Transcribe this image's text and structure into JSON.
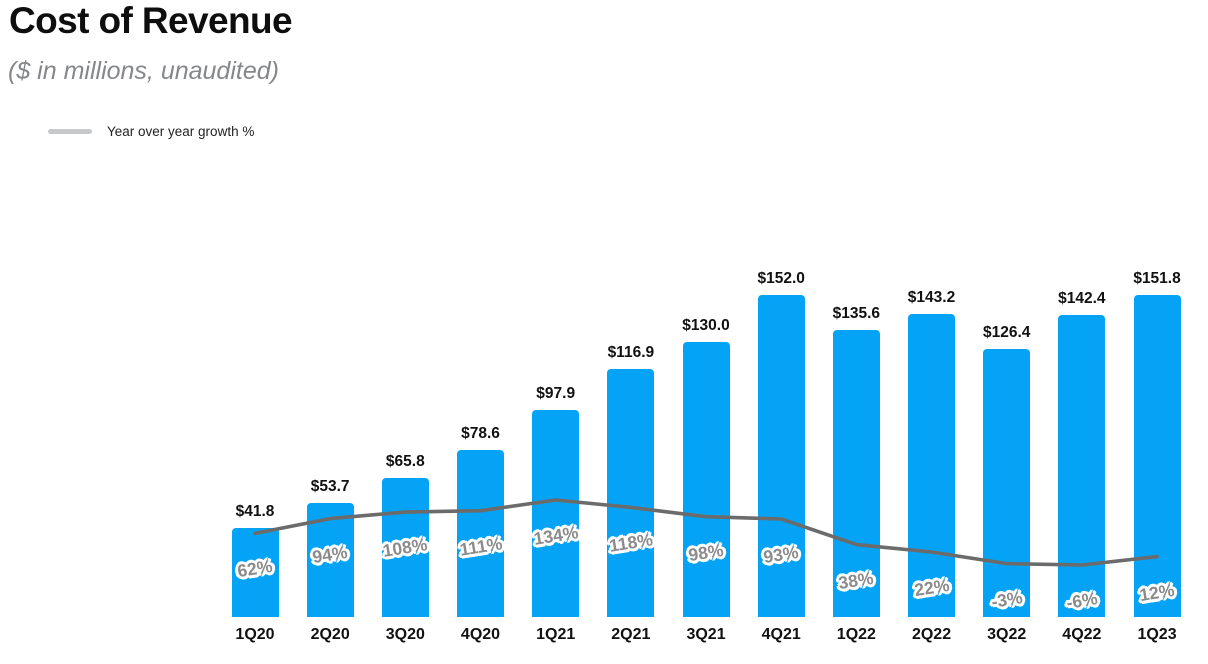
{
  "header": {
    "title": "Cost of Revenue",
    "subtitle": "($ in millions, unaudited)"
  },
  "legend": {
    "label": "Year over year growth %"
  },
  "colors": {
    "bar": "#05a3f5",
    "line": "#6b6b6b",
    "legend_swatch": "#c6c8ca",
    "value_label": "#111111",
    "growth_label": "#8b8b8b"
  },
  "chart_data": {
    "type": "combo",
    "title": "Cost of Revenue",
    "subtitle": "($ in millions, unaudited)",
    "categories": [
      "1Q20",
      "2Q20",
      "3Q20",
      "4Q20",
      "1Q21",
      "2Q21",
      "3Q21",
      "4Q21",
      "1Q22",
      "2Q22",
      "3Q22",
      "4Q22",
      "1Q23"
    ],
    "series": [
      {
        "name": "Cost of revenue ($ in millions)",
        "type": "bar",
        "values": [
          41.8,
          53.7,
          65.8,
          78.6,
          97.9,
          116.9,
          130.0,
          152.0,
          135.6,
          143.2,
          126.4,
          142.4,
          151.8
        ],
        "labels": [
          "$41.8",
          "$53.7",
          "$65.8",
          "$78.6",
          "$97.9",
          "$116.9",
          "$130.0",
          "$152.0",
          "$135.6",
          "$143.2",
          "$126.4",
          "$142.4",
          "$151.8"
        ]
      },
      {
        "name": "Year over year growth %",
        "type": "line",
        "values": [
          62,
          94,
          108,
          111,
          134,
          118,
          98,
          93,
          38,
          22,
          -3,
          -6,
          12
        ],
        "labels": [
          "62%",
          "94%",
          "108%",
          "111%",
          "134%",
          "118%",
          "98%",
          "93%",
          "38%",
          "22%",
          "-3%",
          "-6%",
          "12%"
        ]
      }
    ],
    "ylim": [
      0,
      160
    ],
    "grid": false,
    "axes_visible": false,
    "legend_position": "top-left"
  }
}
